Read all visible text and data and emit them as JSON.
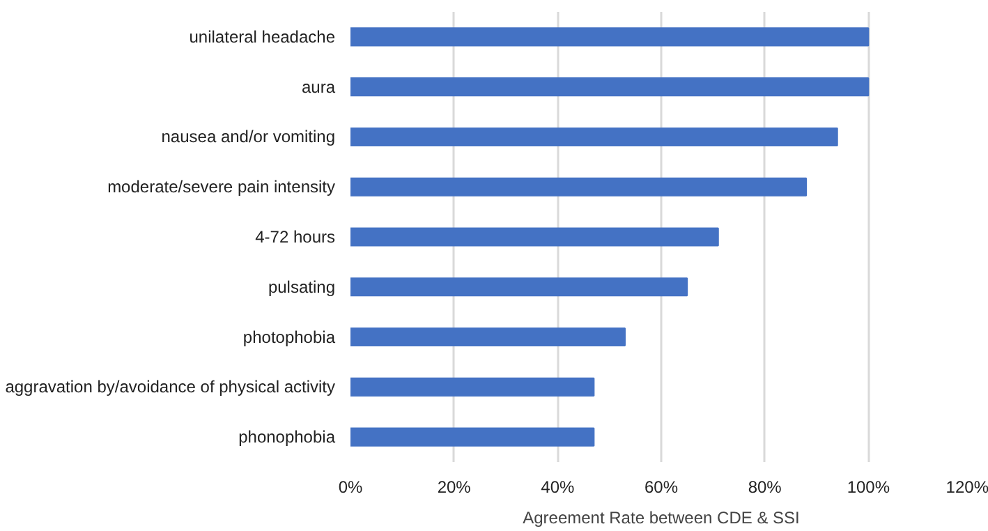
{
  "chart_data": {
    "type": "bar",
    "orientation": "horizontal",
    "xlabel": "Agreement Rate between CDE & SSI",
    "categories": [
      "unilateral headache",
      "aura",
      "nausea and/or vomiting",
      "moderate/severe pain intensity",
      "4-72 hours",
      "pulsating",
      "photophobia",
      "aggravation by/avoidance of physical activity",
      "phonophobia"
    ],
    "values": [
      100,
      100,
      94,
      88,
      71,
      65,
      53,
      47,
      47
    ],
    "color": "#4472c4",
    "xlim": [
      0,
      120
    ],
    "xticks": [
      {
        "value": 0,
        "label": "0%"
      },
      {
        "value": 20,
        "label": "20%"
      },
      {
        "value": 40,
        "label": "40%"
      },
      {
        "value": 60,
        "label": "60%"
      },
      {
        "value": 80,
        "label": "80%"
      },
      {
        "value": 100,
        "label": "100%"
      },
      {
        "value": 120,
        "label": "120%"
      }
    ],
    "grid": "x"
  }
}
